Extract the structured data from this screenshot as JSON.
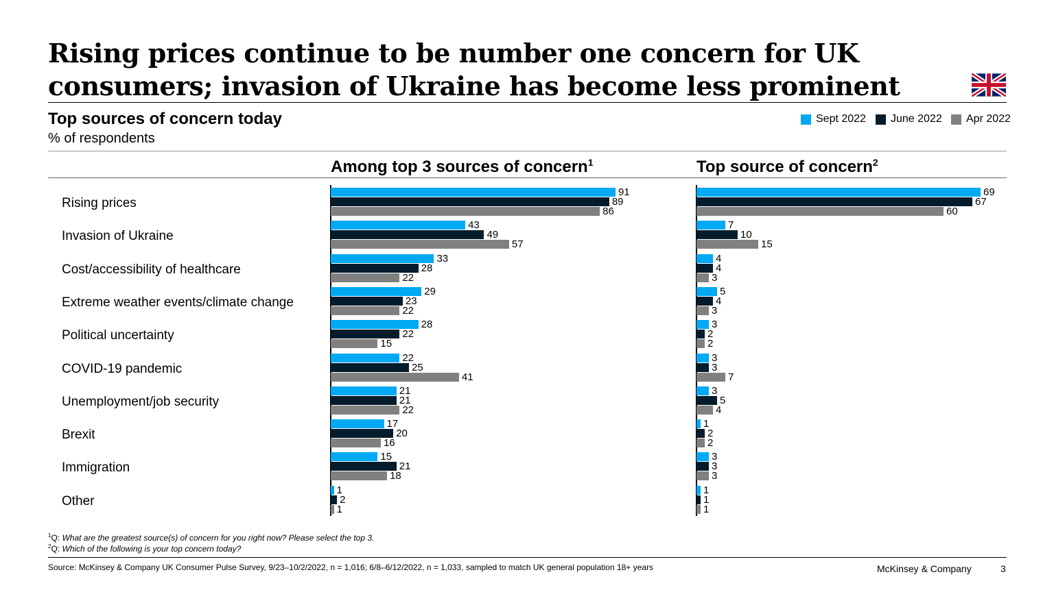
{
  "title": "Rising prices continue to be number one concern for UK consumers; invasion of Ukraine has become less prominent",
  "subtitle": "Top sources of concern today",
  "unit": "% of respondents",
  "flag_icon": "uk-flag-icon",
  "footnotes": [
    "What are the greatest source(s) of concern for you right now? Please select the top 3.",
    "Which of the following is your top concern today?"
  ],
  "footnote_prefix": "Q: ",
  "source": "Source: McKinsey & Company UK Consumer Pulse Survey, 9/23–10/2/2022, n = 1,016; 6/8–6/12/2022, n = 1,033, sampled to match UK general population 18+ years",
  "brand": "McKinsey & Company",
  "page_number": "3",
  "chart_data": {
    "type": "bar",
    "orientation": "horizontal",
    "legend_placement": "top-right",
    "grid": false,
    "categories": [
      "Rising prices",
      "Invasion of Ukraine",
      "Cost/accessibility of healthcare",
      "Extreme weather events/climate change",
      "Political uncertainty",
      "COVID-19 pandemic",
      "Unemployment/job security",
      "Brexit",
      "Immigration",
      "Other"
    ],
    "legend": [
      {
        "name": "Sept 2022",
        "color": "#00A9F4"
      },
      {
        "name": "June 2022",
        "color": "#051C2C"
      },
      {
        "name": "Apr 2022",
        "color": "#808080"
      }
    ],
    "panels": [
      {
        "title": "Among top 3 sources of concern",
        "footnote": "1",
        "series": [
          {
            "name": "Sept 2022",
            "values": [
              91,
              43,
              33,
              29,
              28,
              22,
              21,
              17,
              15,
              1
            ]
          },
          {
            "name": "June 2022",
            "values": [
              89,
              49,
              28,
              23,
              22,
              25,
              21,
              20,
              21,
              2
            ]
          },
          {
            "name": "Apr 2022",
            "values": [
              86,
              57,
              22,
              22,
              15,
              41,
              22,
              16,
              18,
              1
            ]
          }
        ]
      },
      {
        "title": "Top source of concern",
        "footnote": "2",
        "series": [
          {
            "name": "Sept 2022",
            "values": [
              69,
              7,
              4,
              5,
              3,
              3,
              3,
              1,
              3,
              1
            ]
          },
          {
            "name": "June 2022",
            "values": [
              67,
              10,
              4,
              4,
              2,
              3,
              5,
              2,
              3,
              1
            ]
          },
          {
            "name": "Apr 2022",
            "values": [
              60,
              15,
              3,
              3,
              2,
              7,
              4,
              2,
              3,
              1
            ]
          }
        ]
      }
    ]
  }
}
